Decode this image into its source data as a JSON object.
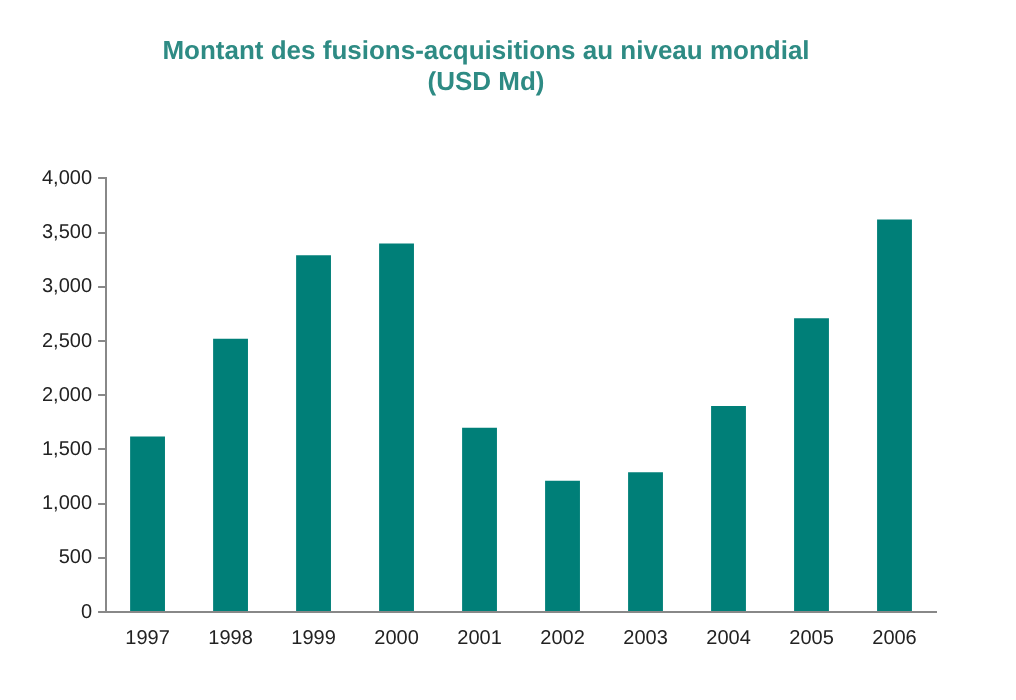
{
  "chart_data": {
    "type": "bar",
    "title": "Montant des fusions-acquisitions au niveau mondial",
    "subtitle": "(USD Md)",
    "categories": [
      "1997",
      "1998",
      "1999",
      "2000",
      "2001",
      "2002",
      "2003",
      "2004",
      "2005",
      "2006"
    ],
    "values": [
      1620,
      2520,
      3290,
      3400,
      1700,
      1210,
      1290,
      1900,
      2710,
      3620
    ],
    "color": "#007f78",
    "ylim": [
      0,
      4000
    ],
    "yticks": [
      0,
      {
        "value": 500,
        "label": "500"
      },
      {
        "value": 1000,
        "label": "1,000"
      },
      {
        "value": 1500,
        "label": "1,500"
      },
      {
        "value": 2000,
        "label": "2,000"
      },
      {
        "value": 2500,
        "label": "2,500"
      },
      {
        "value": 3000,
        "label": "3,000"
      },
      {
        "value": 3500,
        "label": "3,500"
      },
      {
        "value": 4000,
        "label": "4,000"
      }
    ],
    "grid": false,
    "legend": false
  }
}
